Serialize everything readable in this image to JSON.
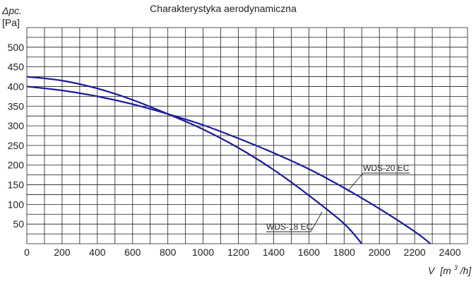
{
  "chart_data": {
    "type": "line",
    "title": "Charakterystyka aerodynamiczna",
    "ylabel_symbol": "Δpc.",
    "ylabel_unit": "[Pa]",
    "xlabel_symbol": "V",
    "xlabel_unit_prefix": "[m",
    "xlabel_unit_sup": "3",
    "xlabel_unit_suffix": "/h]",
    "xlim": [
      0,
      2500
    ],
    "ylim": [
      0,
      550
    ],
    "x_ticks": [
      0,
      200,
      400,
      600,
      800,
      1000,
      1200,
      1400,
      1600,
      1800,
      2000,
      2200,
      2400
    ],
    "y_ticks": [
      50,
      100,
      150,
      200,
      250,
      300,
      350,
      400,
      450,
      500
    ],
    "grid": true,
    "series": [
      {
        "name": "WDS-20 EC",
        "color": "#1a1a9c",
        "x": [
          0,
          200,
          400,
          600,
          800,
          1000,
          1200,
          1400,
          1600,
          1800,
          2000,
          2200,
          2290
        ],
        "y": [
          400,
          390,
          375,
          355,
          330,
          302,
          268,
          231,
          190,
          142,
          89,
          31,
          0
        ]
      },
      {
        "name": "WDS-18 EC",
        "color": "#1a1a9c",
        "x": [
          0,
          200,
          400,
          600,
          800,
          1000,
          1200,
          1400,
          1600,
          1800,
          1900
        ],
        "y": [
          425,
          415,
          395,
          366,
          330,
          291,
          244,
          188,
          123,
          51,
          0
        ]
      }
    ],
    "annotations": [
      {
        "text": "WDS-20 EC",
        "series": 0
      },
      {
        "text": "WDS-18 EC",
        "series": 1
      }
    ]
  }
}
